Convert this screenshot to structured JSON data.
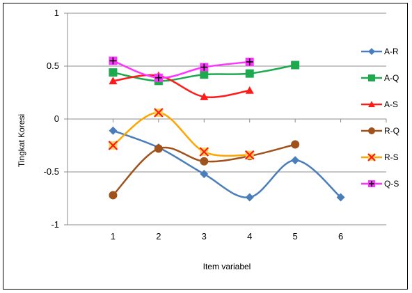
{
  "chart_data": {
    "type": "line",
    "xlabel": "Item variabel",
    "ylabel": "Tingkat Koresi",
    "title": "",
    "x_ticks": [
      "1",
      "2",
      "3",
      "4",
      "5",
      "6"
    ],
    "y_ticks": [
      "1",
      "0.5",
      "0",
      "-0.5",
      "-1"
    ],
    "ylim": [
      -1,
      1
    ],
    "xlim": [
      0,
      7
    ],
    "grid": "horizontal",
    "legend_position": "right",
    "series": [
      {
        "name": "A-R",
        "color": "#4a7ebb",
        "marker": "diamond",
        "x": [
          1,
          2,
          3,
          4,
          5,
          6
        ],
        "y": [
          -0.11,
          -0.27,
          -0.52,
          -0.74,
          -0.39,
          -0.74
        ]
      },
      {
        "name": "A-Q",
        "color": "#1daa4f",
        "marker": "square",
        "x": [
          1,
          2,
          3,
          4,
          5
        ],
        "y": [
          0.44,
          0.36,
          0.42,
          0.43,
          0.51
        ]
      },
      {
        "name": "A-S",
        "color": "#ff1a1a",
        "marker": "triangle",
        "x": [
          1,
          2,
          3,
          4
        ],
        "y": [
          0.36,
          0.41,
          0.21,
          0.27
        ]
      },
      {
        "name": "R-Q",
        "color": "#a0521d",
        "marker": "circle",
        "x": [
          1,
          2,
          3,
          4,
          5
        ],
        "y": [
          -0.72,
          -0.28,
          -0.4,
          -0.35,
          -0.24
        ]
      },
      {
        "name": "R-S",
        "color": "#ffa500",
        "marker": "x",
        "x": [
          1,
          2,
          3,
          4
        ],
        "y": [
          -0.25,
          0.06,
          -0.31,
          -0.34
        ]
      },
      {
        "name": "Q-S",
        "color": "#ff33ff",
        "marker": "plus",
        "x": [
          1,
          2,
          3,
          4
        ],
        "y": [
          0.55,
          0.39,
          0.49,
          0.54
        ]
      }
    ]
  }
}
